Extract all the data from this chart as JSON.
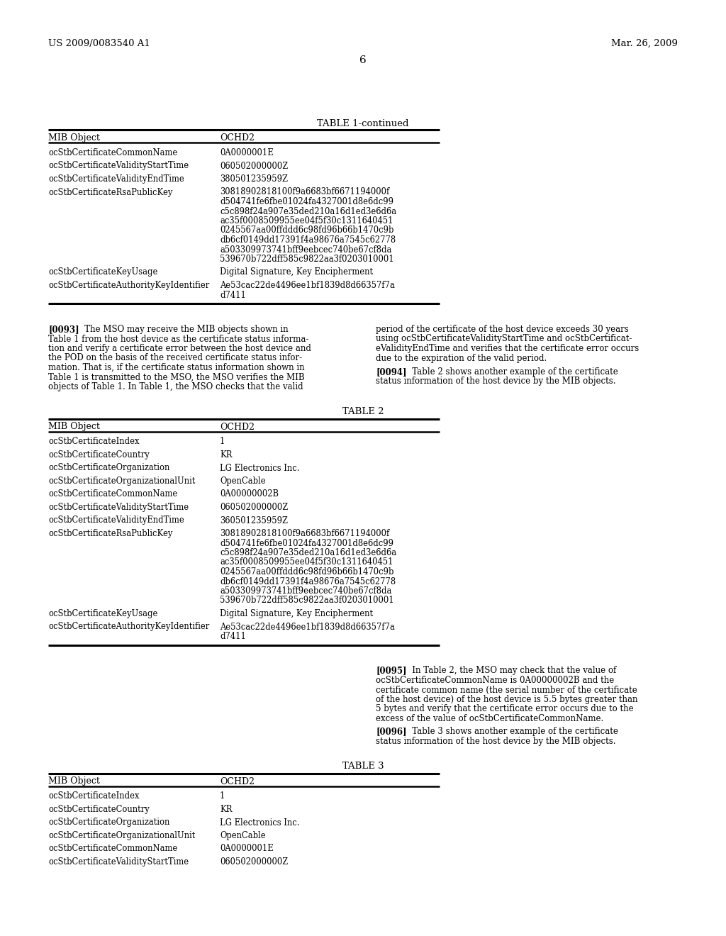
{
  "background_color": "#ffffff",
  "header_left": "US 2009/0083540 A1",
  "header_right": "Mar. 26, 2009",
  "page_number": "6",
  "table1_continued_title": "TABLE 1-continued",
  "table1_col1_header": "MIB Object",
  "table1_col2_header": "OCHD2",
  "table1_rows": [
    [
      "ocStbCertificateCommonName",
      "0A0000001E"
    ],
    [
      "ocStbCertificateValidityStartTime",
      "060502000000Z"
    ],
    [
      "ocStbCertificateValidityEndTime",
      "380501235959Z"
    ],
    [
      "ocStbCertificateRsaPublicKey",
      "30818902818100f9a6683bf6671194000f\nd504741fe6fbe01024fa4327001d8e6dc99\nc5c898f24a907e35ded210a16d1ed3e6d6a\nac35f0008509955ee04f5f30c1311640451\n0245567aa00ffddd6c98fd96b66b1470c9b\ndb6cf0149dd17391f4a98676a7545c62778\na503309973741bff9eebcec740be67cf8da\n539670b722dff585c9822aa3f0203010001"
    ],
    [
      "ocStbCertificateKeyUsage",
      "Digital Signature, Key Encipherment"
    ],
    [
      "ocStbCertificateAuthorityKeyIdentifier",
      "Ae53cac22de4496ee1bf1839d8d66357f7a\nd7411"
    ]
  ],
  "para0093_left": "[0093]   The MSO may receive the MIB objects shown in\nTable 1 from the host device as the certificate status informa-\ntion and verify a certificate error between the host device and\nthe POD on the basis of the received certificate status infor-\nmation. That is, if the certificate status information shown in\nTable 1 is transmitted to the MSO, the MSO verifies the MIB\nobjects of Table 1. In Table 1, the MSO checks that the valid",
  "para0093_right": "period of the certificate of the host device exceeds 30 years\nusing ocStbCertificateValidityStartTime and ocStbCertificat-\neValidityEndTime and verifies that the certificate error occurs\ndue to the expiration of the valid period.",
  "para0094_right": "[0094]   Table 2 shows another example of the certificate\nstatus information of the host device by the MIB objects.",
  "table2_title": "TABLE 2",
  "table2_col1_header": "MIB Object",
  "table2_col2_header": "OCHD2",
  "table2_rows": [
    [
      "ocStbCertificateIndex",
      "1"
    ],
    [
      "ocStbCertificateCountry",
      "KR"
    ],
    [
      "ocStbCertificateOrganization",
      "LG Electronics Inc."
    ],
    [
      "ocStbCertificateOrganizationalUnit",
      "OpenCable"
    ],
    [
      "ocStbCertificateCommonName",
      "0A00000002B"
    ],
    [
      "ocStbCertificateValidityStartTime",
      "060502000000Z"
    ],
    [
      "ocStbCertificateValidityEndTime",
      "360501235959Z"
    ],
    [
      "ocStbCertificateRsaPublicKey",
      "30818902818100f9a6683bf6671194000f\nd504741fe6fbe01024fa4327001d8e6dc99\nc5c898f24a907e35ded210a16d1ed3e6d6a\nac35f0008509955ee04f5f30c1311640451\n0245567aa00ffddd6c98fd96b66b1470c9b\ndb6cf0149dd17391f4a98676a7545c62778\na503309973741bff9eebcec740be67cf8da\n539670b722dff585c9822aa3f0203010001"
    ],
    [
      "ocStbCertificateKeyUsage",
      "Digital Signature, Key Encipherment"
    ],
    [
      "ocStbCertificateAuthorityKeyIdentifier",
      "Ae53cac22de4496ee1bf1839d8d66357f7a\nd7411"
    ]
  ],
  "para0095_right": "[0095]   In Table 2, the MSO may check that the value of\nocStbCertificateCommonName is 0A00000002B and the\ncertificate common name (the serial number of the certificate\nof the host device) of the host device is 5.5 bytes greater than\n5 bytes and verify that the certificate error occurs due to the\nexcess of the value of ocStbCertificateCommonName.",
  "para0096_right": "[0096]   Table 3 shows another example of the certificate\nstatus information of the host device by the MIB objects.",
  "table3_title": "TABLE 3",
  "table3_col1_header": "MIB Object",
  "table3_col2_header": "OCHD2",
  "table3_rows": [
    [
      "ocStbCertificateIndex",
      "1"
    ],
    [
      "ocStbCertificateCountry",
      "KR"
    ],
    [
      "ocStbCertificateOrganization",
      "LG Electronics Inc."
    ],
    [
      "ocStbCertificateOrganizationalUnit",
      "OpenCable"
    ],
    [
      "ocStbCertificateCommonName",
      "0A0000001E"
    ],
    [
      "ocStbCertificateValidityStartTime",
      "060502000000Z"
    ]
  ]
}
